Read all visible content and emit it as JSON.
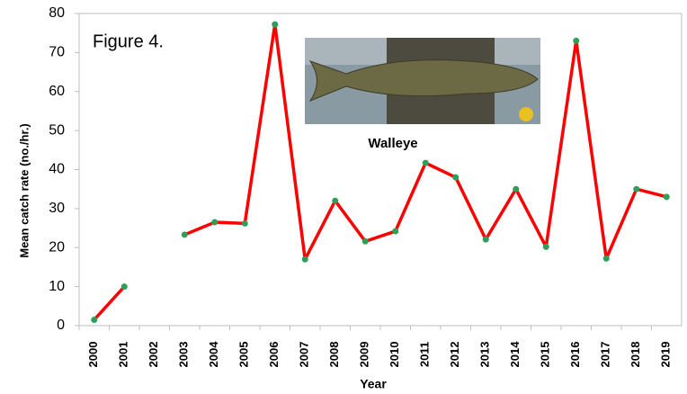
{
  "chart_data": {
    "type": "line",
    "annotations": [
      "Figure 4.",
      "Walleye"
    ],
    "xlabel": "Year",
    "ylabel": "Mean catch rate (no./hr.)",
    "categories": [
      "2000",
      "2001",
      "2002",
      "2003",
      "2004",
      "2005",
      "2006",
      "2007",
      "2008",
      "2009",
      "2010",
      "2011",
      "2012",
      "2013",
      "2014",
      "2015",
      "2016",
      "2017",
      "2018",
      "2019"
    ],
    "series": [
      {
        "color": "#ff0000",
        "marker_color": "#2e9e5b",
        "values": [
          1.5,
          10,
          null,
          23.3,
          26.5,
          26.2,
          77.2,
          17,
          32,
          21.6,
          24.2,
          41.7,
          38,
          22.1,
          35,
          20.2,
          73,
          17.2,
          35,
          33
        ]
      }
    ],
    "ylim": [
      0,
      80
    ],
    "yticks": [
      0,
      10,
      20,
      30,
      40,
      50,
      60,
      70,
      80
    ],
    "grid": false
  }
}
